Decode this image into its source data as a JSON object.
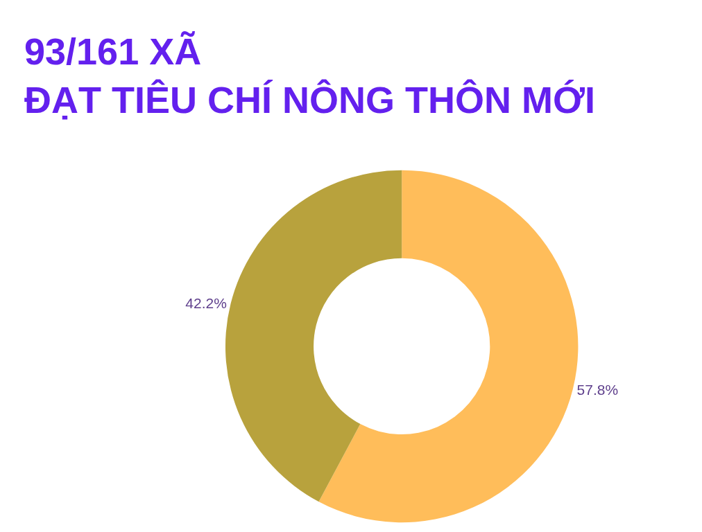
{
  "chart_data": {
    "type": "donut",
    "title": "93/161 XÃ\nĐẠT TIÊU CHÍ NÔNG THÔN MỚI",
    "categories": [
      null,
      null
    ],
    "values": [
      57.8,
      42.2
    ],
    "colors": [
      "#FFBD5A",
      "#B8A23D"
    ],
    "value_labels": [
      "57.8%",
      "42.2%"
    ]
  }
}
